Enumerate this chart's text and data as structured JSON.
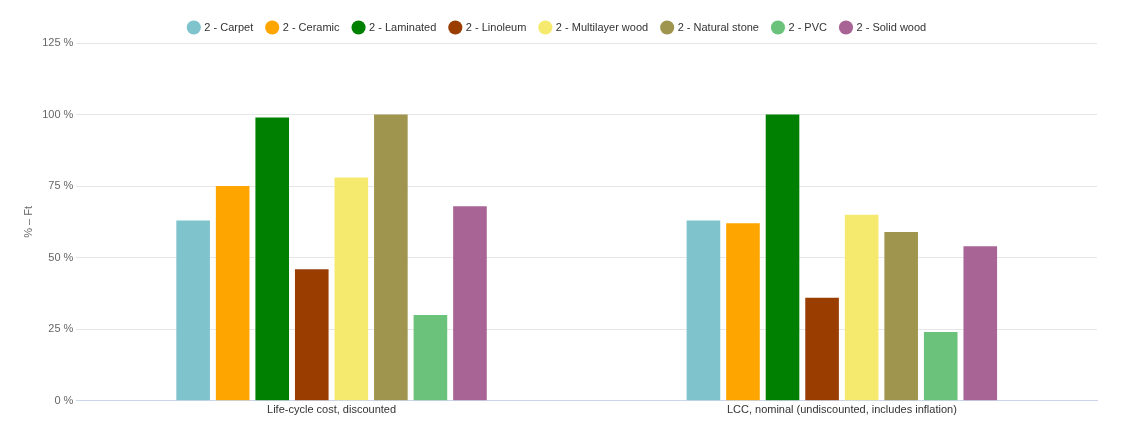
{
  "chart_data": {
    "type": "bar",
    "ylabel": "% – Ft",
    "categories": [
      "Life-cycle cost, discounted",
      "LCC, nominal (undiscounted, includes inflation)"
    ],
    "series": [
      {
        "name": "2 - Carpet",
        "color": "#7fc3cc",
        "values": [
          63,
          63
        ]
      },
      {
        "name": "2 - Ceramic",
        "color": "#ffa500",
        "values": [
          75,
          62
        ]
      },
      {
        "name": "2 - Laminated",
        "color": "#008000",
        "values": [
          99,
          100
        ]
      },
      {
        "name": "2 - Linoleum",
        "color": "#993d00",
        "values": [
          46,
          36
        ]
      },
      {
        "name": "2 - Multilayer wood",
        "color": "#f5e96e",
        "values": [
          78,
          65
        ]
      },
      {
        "name": "2 - Natural stone",
        "color": "#a0954f",
        "values": [
          100,
          59
        ]
      },
      {
        "name": "2 - PVC",
        "color": "#6bc27a",
        "values": [
          30,
          24
        ]
      },
      {
        "name": "2 - Solid wood",
        "color": "#a86495",
        "values": [
          68,
          54
        ]
      }
    ],
    "ylim": [
      0,
      125
    ],
    "yticks": [
      {
        "value": 0,
        "label": "0 %"
      },
      {
        "value": 25,
        "label": "25 %"
      },
      {
        "value": 50,
        "label": "50 %"
      },
      {
        "value": 75,
        "label": "75 %"
      },
      {
        "value": 100,
        "label": "100 %"
      },
      {
        "value": 125,
        "label": "125 %"
      }
    ],
    "grid": "y",
    "legend": "top"
  }
}
